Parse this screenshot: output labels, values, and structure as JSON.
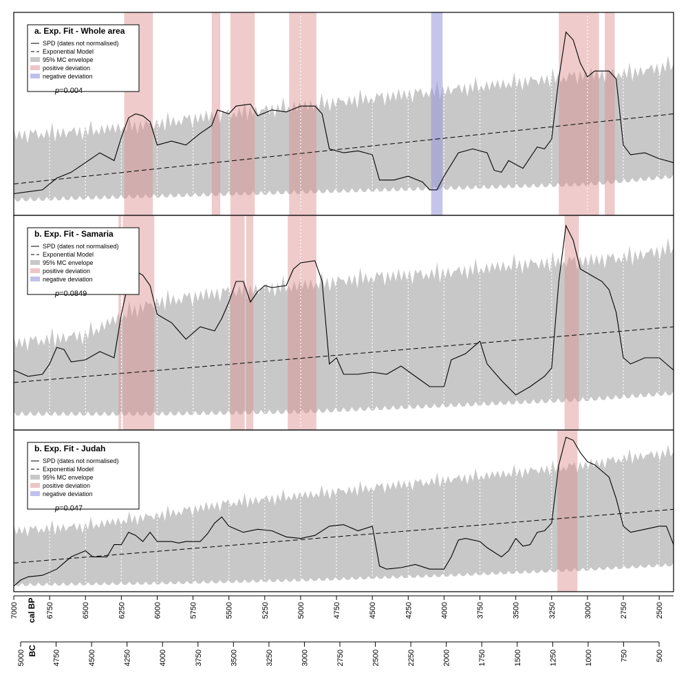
{
  "chart_data": [
    {
      "type": "area",
      "panel_label": "a. Exp. Fit - Whole area",
      "p_value_prefix": "p",
      "p_value": "=0.004",
      "legend": [
        "SPD (dates not normalised)",
        "Exponential Model",
        "95% MC envelope",
        "positive deviation",
        "negative deviation"
      ],
      "legend_position": "top-left",
      "ylim": [
        0,
        1
      ],
      "model": [
        [
          7000,
          0.14
        ],
        [
          2400,
          0.5
        ]
      ],
      "envelope_low": [
        [
          7000,
          0.06
        ],
        [
          6000,
          0.08
        ],
        [
          5000,
          0.1
        ],
        [
          4000,
          0.12
        ],
        [
          3000,
          0.14
        ],
        [
          2400,
          0.18
        ]
      ],
      "envelope_high": [
        [
          7000,
          0.39
        ],
        [
          6500,
          0.41
        ],
        [
          6000,
          0.45
        ],
        [
          5500,
          0.5
        ],
        [
          5000,
          0.54
        ],
        [
          4500,
          0.58
        ],
        [
          4000,
          0.62
        ],
        [
          3500,
          0.66
        ],
        [
          3000,
          0.7
        ],
        [
          2700,
          0.71
        ],
        [
          2400,
          0.75
        ]
      ],
      "spd": [
        [
          7000,
          0.09
        ],
        [
          6900,
          0.1
        ],
        [
          6800,
          0.11
        ],
        [
          6700,
          0.17
        ],
        [
          6600,
          0.2
        ],
        [
          6500,
          0.25
        ],
        [
          6400,
          0.3
        ],
        [
          6300,
          0.26
        ],
        [
          6250,
          0.38
        ],
        [
          6200,
          0.48
        ],
        [
          6150,
          0.5
        ],
        [
          6100,
          0.49
        ],
        [
          6050,
          0.46
        ],
        [
          6000,
          0.34
        ],
        [
          5900,
          0.36
        ],
        [
          5800,
          0.34
        ],
        [
          5700,
          0.4
        ],
        [
          5620,
          0.44
        ],
        [
          5580,
          0.52
        ],
        [
          5500,
          0.5
        ],
        [
          5450,
          0.54
        ],
        [
          5350,
          0.55
        ],
        [
          5300,
          0.49
        ],
        [
          5200,
          0.52
        ],
        [
          5100,
          0.51
        ],
        [
          5000,
          0.54
        ],
        [
          4900,
          0.54
        ],
        [
          4850,
          0.5
        ],
        [
          4800,
          0.32
        ],
        [
          4700,
          0.3
        ],
        [
          4600,
          0.31
        ],
        [
          4500,
          0.29
        ],
        [
          4450,
          0.16
        ],
        [
          4350,
          0.16
        ],
        [
          4250,
          0.18
        ],
        [
          4150,
          0.15
        ],
        [
          4100,
          0.11
        ],
        [
          4050,
          0.11
        ],
        [
          4000,
          0.18
        ],
        [
          3900,
          0.3
        ],
        [
          3800,
          0.32
        ],
        [
          3700,
          0.3
        ],
        [
          3650,
          0.21
        ],
        [
          3600,
          0.2
        ],
        [
          3550,
          0.26
        ],
        [
          3450,
          0.22
        ],
        [
          3350,
          0.33
        ],
        [
          3300,
          0.32
        ],
        [
          3250,
          0.37
        ],
        [
          3200,
          0.68
        ],
        [
          3150,
          0.92
        ],
        [
          3100,
          0.88
        ],
        [
          3050,
          0.76
        ],
        [
          3000,
          0.69
        ],
        [
          2950,
          0.72
        ],
        [
          2900,
          0.72
        ],
        [
          2850,
          0.72
        ],
        [
          2800,
          0.68
        ],
        [
          2750,
          0.34
        ],
        [
          2700,
          0.29
        ],
        [
          2600,
          0.3
        ],
        [
          2500,
          0.27
        ],
        [
          2400,
          0.25
        ]
      ],
      "positive_deviation": [
        [
          6230,
          6030
        ],
        [
          5620,
          5560
        ],
        [
          5490,
          5320
        ],
        [
          5080,
          4890
        ],
        [
          3200,
          2920
        ],
        [
          2880,
          2810
        ]
      ],
      "negative_deviation": [
        [
          4090,
          4010
        ]
      ]
    },
    {
      "type": "area",
      "panel_label": "b. Exp. Fit - Samaria",
      "p_value_prefix": "p",
      "p_value": "=0.0849",
      "legend": [
        "SPD (dates not normalised)",
        "Exponential Model",
        "95% MC envelope",
        "positive deviation",
        "negative deviation"
      ],
      "legend_position": "top-left",
      "ylim": [
        0,
        1
      ],
      "model": [
        [
          7000,
          0.21
        ],
        [
          2400,
          0.48
        ]
      ],
      "envelope_low": [
        [
          7000,
          0.06
        ],
        [
          6000,
          0.06
        ],
        [
          5000,
          0.07
        ],
        [
          4000,
          0.1
        ],
        [
          3000,
          0.13
        ],
        [
          2400,
          0.16
        ]
      ],
      "envelope_high": [
        [
          7000,
          0.4
        ],
        [
          6500,
          0.44
        ],
        [
          6200,
          0.55
        ],
        [
          6000,
          0.6
        ],
        [
          5500,
          0.65
        ],
        [
          5000,
          0.68
        ],
        [
          4500,
          0.72
        ],
        [
          4000,
          0.74
        ],
        [
          3500,
          0.78
        ],
        [
          3000,
          0.8
        ],
        [
          2700,
          0.82
        ],
        [
          2400,
          0.86
        ]
      ],
      "spd": [
        [
          7000,
          0.27
        ],
        [
          6900,
          0.24
        ],
        [
          6800,
          0.25
        ],
        [
          6750,
          0.3
        ],
        [
          6700,
          0.38
        ],
        [
          6650,
          0.37
        ],
        [
          6600,
          0.31
        ],
        [
          6500,
          0.32
        ],
        [
          6400,
          0.36
        ],
        [
          6300,
          0.33
        ],
        [
          6250,
          0.54
        ],
        [
          6200,
          0.7
        ],
        [
          6150,
          0.75
        ],
        [
          6100,
          0.73
        ],
        [
          6050,
          0.68
        ],
        [
          6000,
          0.54
        ],
        [
          5900,
          0.5
        ],
        [
          5800,
          0.42
        ],
        [
          5700,
          0.48
        ],
        [
          5600,
          0.46
        ],
        [
          5550,
          0.52
        ],
        [
          5500,
          0.6
        ],
        [
          5450,
          0.7
        ],
        [
          5400,
          0.7
        ],
        [
          5350,
          0.6
        ],
        [
          5300,
          0.65
        ],
        [
          5250,
          0.68
        ],
        [
          5200,
          0.67
        ],
        [
          5100,
          0.68
        ],
        [
          5050,
          0.76
        ],
        [
          5000,
          0.79
        ],
        [
          4900,
          0.8
        ],
        [
          4850,
          0.7
        ],
        [
          4800,
          0.3
        ],
        [
          4750,
          0.33
        ],
        [
          4700,
          0.25
        ],
        [
          4600,
          0.25
        ],
        [
          4500,
          0.26
        ],
        [
          4400,
          0.25
        ],
        [
          4300,
          0.29
        ],
        [
          4200,
          0.24
        ],
        [
          4100,
          0.19
        ],
        [
          4000,
          0.19
        ],
        [
          3950,
          0.32
        ],
        [
          3850,
          0.35
        ],
        [
          3750,
          0.41
        ],
        [
          3700,
          0.3
        ],
        [
          3600,
          0.22
        ],
        [
          3500,
          0.15
        ],
        [
          3400,
          0.19
        ],
        [
          3300,
          0.24
        ],
        [
          3250,
          0.28
        ],
        [
          3200,
          0.7
        ],
        [
          3150,
          0.97
        ],
        [
          3100,
          0.9
        ],
        [
          3050,
          0.76
        ],
        [
          3000,
          0.74
        ],
        [
          2950,
          0.72
        ],
        [
          2900,
          0.7
        ],
        [
          2850,
          0.66
        ],
        [
          2800,
          0.55
        ],
        [
          2750,
          0.33
        ],
        [
          2700,
          0.3
        ],
        [
          2600,
          0.33
        ],
        [
          2500,
          0.33
        ],
        [
          2450,
          0.3
        ],
        [
          2400,
          0.27
        ]
      ],
      "positive_deviation": [
        [
          6270,
          6250
        ],
        [
          6240,
          6020
        ],
        [
          5490,
          5390
        ],
        [
          5380,
          5330
        ],
        [
          5090,
          4890
        ],
        [
          3160,
          3060
        ]
      ],
      "negative_deviation": []
    },
    {
      "type": "area",
      "panel_label": "b. Exp. Fit - Judah",
      "p_value_prefix": "p",
      "p_value": "=0.047",
      "legend": [
        "SPD (dates not normalised)",
        "Exponential Model",
        "95% MC envelope",
        "positive deviation",
        "negative deviation"
      ],
      "legend_position": "top-left",
      "ylim": [
        0,
        1
      ],
      "model": [
        [
          7000,
          0.16
        ],
        [
          2400,
          0.51
        ]
      ],
      "envelope_low": [
        [
          7000,
          0.02
        ],
        [
          6000,
          0.03
        ],
        [
          5000,
          0.05
        ],
        [
          4000,
          0.08
        ],
        [
          3000,
          0.12
        ],
        [
          2400,
          0.15
        ]
      ],
      "envelope_high": [
        [
          7000,
          0.37
        ],
        [
          6500,
          0.4
        ],
        [
          6000,
          0.47
        ],
        [
          5500,
          0.55
        ],
        [
          5000,
          0.6
        ],
        [
          4500,
          0.65
        ],
        [
          4000,
          0.7
        ],
        [
          3500,
          0.75
        ],
        [
          3000,
          0.8
        ],
        [
          2700,
          0.85
        ],
        [
          2400,
          0.88
        ]
      ],
      "spd": [
        [
          7000,
          0.01
        ],
        [
          6950,
          0.05
        ],
        [
          6900,
          0.07
        ],
        [
          6800,
          0.08
        ],
        [
          6700,
          0.12
        ],
        [
          6600,
          0.2
        ],
        [
          6550,
          0.22
        ],
        [
          6500,
          0.24
        ],
        [
          6450,
          0.2
        ],
        [
          6350,
          0.2
        ],
        [
          6300,
          0.28
        ],
        [
          6250,
          0.28
        ],
        [
          6200,
          0.36
        ],
        [
          6150,
          0.34
        ],
        [
          6100,
          0.3
        ],
        [
          6050,
          0.36
        ],
        [
          6000,
          0.3
        ],
        [
          5900,
          0.3
        ],
        [
          5850,
          0.29
        ],
        [
          5800,
          0.3
        ],
        [
          5700,
          0.3
        ],
        [
          5650,
          0.35
        ],
        [
          5600,
          0.42
        ],
        [
          5550,
          0.46
        ],
        [
          5500,
          0.4
        ],
        [
          5400,
          0.36
        ],
        [
          5300,
          0.38
        ],
        [
          5200,
          0.37
        ],
        [
          5100,
          0.33
        ],
        [
          5000,
          0.32
        ],
        [
          4900,
          0.34
        ],
        [
          4800,
          0.4
        ],
        [
          4700,
          0.41
        ],
        [
          4600,
          0.37
        ],
        [
          4500,
          0.4
        ],
        [
          4450,
          0.14
        ],
        [
          4400,
          0.12
        ],
        [
          4300,
          0.13
        ],
        [
          4200,
          0.15
        ],
        [
          4100,
          0.12
        ],
        [
          4000,
          0.12
        ],
        [
          3950,
          0.2
        ],
        [
          3900,
          0.31
        ],
        [
          3850,
          0.32
        ],
        [
          3750,
          0.3
        ],
        [
          3700,
          0.26
        ],
        [
          3600,
          0.2
        ],
        [
          3550,
          0.24
        ],
        [
          3500,
          0.32
        ],
        [
          3450,
          0.27
        ],
        [
          3400,
          0.28
        ],
        [
          3350,
          0.36
        ],
        [
          3300,
          0.37
        ],
        [
          3250,
          0.42
        ],
        [
          3200,
          0.8
        ],
        [
          3150,
          0.98
        ],
        [
          3100,
          0.96
        ],
        [
          3050,
          0.88
        ],
        [
          3000,
          0.82
        ],
        [
          2950,
          0.8
        ],
        [
          2900,
          0.76
        ],
        [
          2850,
          0.72
        ],
        [
          2800,
          0.58
        ],
        [
          2750,
          0.4
        ],
        [
          2700,
          0.36
        ],
        [
          2600,
          0.38
        ],
        [
          2500,
          0.4
        ],
        [
          2450,
          0.4
        ],
        [
          2400,
          0.28
        ]
      ],
      "positive_deviation": [
        [
          3210,
          3070
        ]
      ],
      "negative_deviation": []
    }
  ],
  "axis_bp": {
    "label": "cal BP",
    "range": [
      7000,
      2400
    ],
    "ticks": [
      "7000",
      "6750",
      "6500",
      "6250",
      "6000",
      "5750",
      "5500",
      "5250",
      "5000",
      "4750",
      "4500",
      "4250",
      "4000",
      "3750",
      "3500",
      "3250",
      "3000",
      "2750",
      "2500"
    ]
  },
  "axis_bc": {
    "label": "BC",
    "ticks": [
      "5000",
      "4750",
      "4500",
      "4250",
      "4000",
      "3750",
      "3500",
      "3250",
      "3000",
      "2750",
      "2500",
      "2250",
      "2000",
      "1750",
      "1500",
      "1250",
      "1000",
      "750",
      "500"
    ]
  },
  "colors": {
    "envelope": "#c8c8c8",
    "positive": "#dc8c8c",
    "negative": "#9696dc",
    "spd": "#000000",
    "model": "#000000",
    "gridline": "#ffffff"
  }
}
